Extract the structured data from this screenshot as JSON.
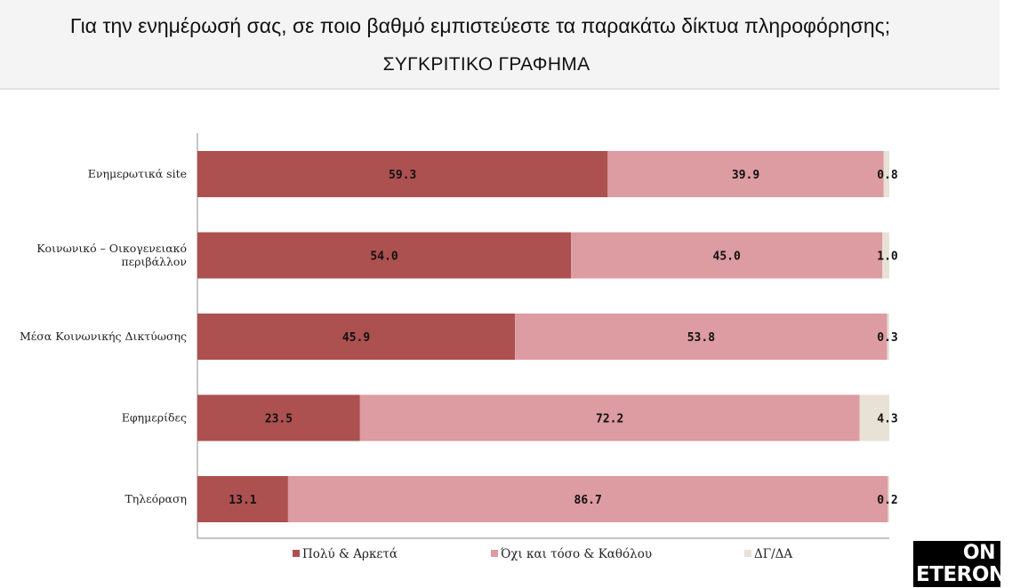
{
  "header": {
    "title": "Για την ενημέρωσή σας, σε ποιο βαθμό εμπιστεύεστε τα παρακάτω δίκτυα πληροφόρησης;",
    "subtitle": "ΣΥΓΚΡΙΤΙΚΟ ΓΡΑΦΗΜΑ"
  },
  "logo": {
    "top": "ON",
    "bottom": "ETERON"
  },
  "chart_data": {
    "type": "bar",
    "orientation": "horizontal",
    "stacked": true,
    "categories": [
      [
        "Ενημερωτικά site"
      ],
      [
        "Κοινωνικό – Οικογενειακό",
        "περιβάλλον"
      ],
      [
        "Μέσα Κοινωνικής Δικτύωσης"
      ],
      [
        "Εφημερίδες"
      ],
      [
        "Τηλεόραση"
      ]
    ],
    "series": [
      {
        "name": "Πολύ & Αρκετά",
        "color": "#ad5050",
        "values": [
          59.3,
          54.0,
          45.9,
          23.5,
          13.1
        ]
      },
      {
        "name": "Όχι και τόσο & Καθόλου",
        "color": "#dd9ba2",
        "values": [
          39.9,
          45.0,
          53.8,
          72.2,
          86.7
        ]
      },
      {
        "name": "ΔΓ/ΔΑ",
        "color": "#e8e1d6",
        "values": [
          0.8,
          1.0,
          0.3,
          4.3,
          0.2
        ]
      }
    ],
    "value_labels": [
      [
        "59.3",
        "39.9",
        "0.8"
      ],
      [
        "54.0",
        "45.0",
        "1.0"
      ],
      [
        "45.9",
        "53.8",
        "0.3"
      ],
      [
        "23.5",
        "72.2",
        "4.3"
      ],
      [
        "13.1",
        "86.7",
        "0.2"
      ]
    ],
    "xlim": [
      0,
      100
    ],
    "legend_position": "bottom",
    "grid": false
  }
}
